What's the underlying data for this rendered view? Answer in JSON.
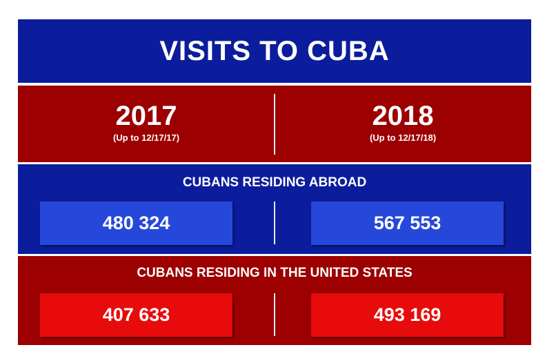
{
  "title": "VISITS TO CUBA",
  "columns": [
    {
      "year": "2017",
      "note": "(Up to 12/17/17)"
    },
    {
      "year": "2018",
      "note": "(Up to 12/17/18)"
    }
  ],
  "sections": [
    {
      "heading": "CUBANS RESIDING ABROAD",
      "values": [
        "480 324",
        "567 553"
      ]
    },
    {
      "heading": "CUBANS RESIDING IN THE UNITED STATES",
      "values": [
        "407 633",
        "493 169"
      ]
    }
  ]
}
